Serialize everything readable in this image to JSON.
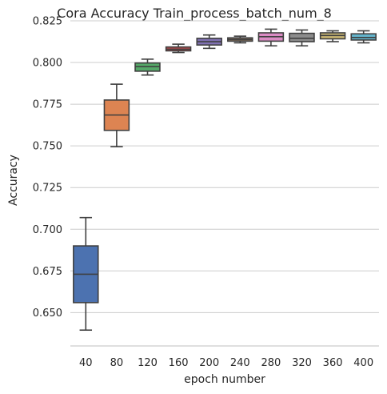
{
  "chart_data": {
    "type": "box",
    "title": "Cora Accuracy Train_process_batch_num_8",
    "xlabel": "epoch number",
    "ylabel": "Accuracy",
    "ylim": [
      0.63,
      0.825
    ],
    "yticks": [
      "0.650",
      "0.675",
      "0.700",
      "0.725",
      "0.750",
      "0.775",
      "0.800",
      "0.825"
    ],
    "ytick_values": [
      0.65,
      0.675,
      0.7,
      0.725,
      0.75,
      0.775,
      0.8,
      0.825
    ],
    "grid": "horizontal",
    "categories": [
      "40",
      "80",
      "120",
      "160",
      "200",
      "240",
      "280",
      "320",
      "360",
      "400"
    ],
    "boxes": [
      {
        "category": "40",
        "min": 0.6395,
        "q1": 0.656,
        "median": 0.673,
        "q3": 0.69,
        "max": 0.707,
        "color": "#4c72b0"
      },
      {
        "category": "80",
        "min": 0.7495,
        "q1": 0.7593,
        "median": 0.7685,
        "q3": 0.7775,
        "max": 0.787,
        "color": "#dd8452"
      },
      {
        "category": "120",
        "min": 0.7925,
        "q1": 0.7948,
        "median": 0.7975,
        "q3": 0.7997,
        "max": 0.802,
        "color": "#55a868"
      },
      {
        "category": "160",
        "min": 0.806,
        "q1": 0.807,
        "median": 0.808,
        "q3": 0.8093,
        "max": 0.811,
        "color": "#c44e52"
      },
      {
        "category": "200",
        "min": 0.8085,
        "q1": 0.8105,
        "median": 0.8125,
        "q3": 0.8145,
        "max": 0.8165,
        "color": "#8172b3"
      },
      {
        "category": "240",
        "min": 0.8118,
        "q1": 0.8128,
        "median": 0.8138,
        "q3": 0.8148,
        "max": 0.8158,
        "color": "#937860"
      },
      {
        "category": "280",
        "min": 0.81,
        "q1": 0.8128,
        "median": 0.8155,
        "q3": 0.8178,
        "max": 0.82,
        "color": "#da8bc3"
      },
      {
        "category": "320",
        "min": 0.81,
        "q1": 0.8125,
        "median": 0.8145,
        "q3": 0.8175,
        "max": 0.8195,
        "color": "#8c8c8c"
      },
      {
        "category": "360",
        "min": 0.8125,
        "q1": 0.8142,
        "median": 0.8162,
        "q3": 0.8178,
        "max": 0.819,
        "color": "#ccb974"
      },
      {
        "category": "400",
        "min": 0.8118,
        "q1": 0.8135,
        "median": 0.815,
        "q3": 0.8172,
        "max": 0.819,
        "color": "#64b5cd"
      }
    ]
  }
}
